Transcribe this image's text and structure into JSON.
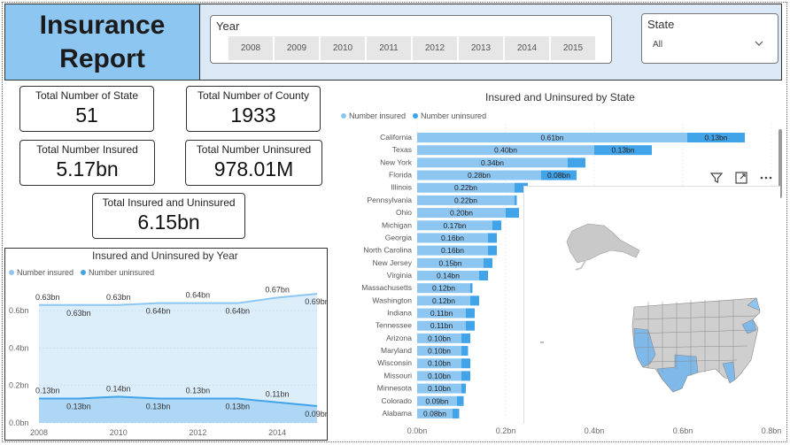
{
  "header": {
    "title": "Insurance Report",
    "year_slicer": {
      "label": "Year",
      "options": [
        "2008",
        "2009",
        "2010",
        "2011",
        "2012",
        "2013",
        "2014",
        "2015"
      ]
    },
    "state_slicer": {
      "label": "State",
      "selected": "All"
    }
  },
  "kpis": {
    "states": {
      "label": "Total Number of State",
      "value": "51"
    },
    "county": {
      "label": "Total Number of County",
      "value": "1933"
    },
    "insured": {
      "label": "Total Number Insured",
      "value": "5.17bn"
    },
    "uninsured": {
      "label": "Total Number Uninsured",
      "value": "978.01M"
    },
    "total": {
      "label": "Total Insured and Uninsured",
      "value": "6.15bn"
    }
  },
  "colors": {
    "insured": "#8ec6f2",
    "uninsured": "#41a3e8"
  },
  "year_chart": {
    "title": "Insured and Uninsured by Year",
    "legend_insured": "Number insured",
    "legend_uninsured": "Number uninsured"
  },
  "state_chart": {
    "title": "Insured and Uninsured by State",
    "legend_insured": "Number insured",
    "legend_uninsured": "Number uninsured"
  },
  "visual_icons": [
    "filter-icon",
    "focus-mode-icon",
    "more-options-icon"
  ],
  "chart_data": [
    {
      "type": "area",
      "title": "Insured and Uninsured by Year",
      "x": [
        2008,
        2009,
        2010,
        2011,
        2012,
        2013,
        2014,
        2015
      ],
      "x_ticks": [
        "2008",
        "2010",
        "2012",
        "2014"
      ],
      "y_ticks": [
        "0.0bn",
        "0.2bn",
        "0.4bn",
        "0.6bn"
      ],
      "ylim": [
        0,
        0.7
      ],
      "series": [
        {
          "name": "Number insured",
          "values": [
            0.63,
            0.63,
            0.63,
            0.64,
            0.64,
            0.64,
            0.67,
            0.69
          ],
          "labels": [
            "0.63bn",
            "0.63bn",
            "0.63bn",
            "0.64bn",
            "0.64bn",
            "0.64bn",
            "0.67bn",
            "0.69bn"
          ]
        },
        {
          "name": "Number uninsured",
          "values": [
            0.13,
            0.13,
            0.14,
            0.13,
            0.13,
            0.13,
            0.11,
            0.09
          ],
          "labels": [
            "0.13bn",
            "0.13bn",
            "0.14bn",
            "0.13bn",
            "0.13bn",
            "0.13bn",
            "0.11bn",
            "0.09bn"
          ]
        }
      ],
      "legend": "top-left"
    },
    {
      "type": "bar",
      "orientation": "horizontal",
      "stacked": true,
      "title": "Insured and Uninsured by State",
      "categories": [
        "California",
        "Texas",
        "New York",
        "Florida",
        "Illinois",
        "Pennsylvania",
        "Ohio",
        "Michigan",
        "Georgia",
        "North Carolina",
        "New Jersey",
        "Virginia",
        "Massachusetts",
        "Washington",
        "Indiana",
        "Tennessee",
        "Arizona",
        "Maryland",
        "Wisconsin",
        "Missouri",
        "Minnesota",
        "Colorado",
        "Alabama"
      ],
      "series": [
        {
          "name": "Number insured",
          "values": [
            0.61,
            0.4,
            0.34,
            0.28,
            0.22,
            0.22,
            0.2,
            0.17,
            0.16,
            0.16,
            0.15,
            0.14,
            0.12,
            0.12,
            0.11,
            0.11,
            0.1,
            0.1,
            0.1,
            0.1,
            0.1,
            0.09,
            0.08
          ],
          "labels": [
            "0.61bn",
            "0.40bn",
            "0.34bn",
            "0.28bn",
            "0.22bn",
            "0.22bn",
            "0.20bn",
            "0.17bn",
            "0.16bn",
            "0.16bn",
            "0.15bn",
            "0.14bn",
            "0.12bn",
            "0.12bn",
            "0.11bn",
            "0.11bn",
            "0.10bn",
            "0.10bn",
            "0.10bn",
            "0.10bn",
            "0.10bn",
            "0.09bn",
            "0.08bn"
          ]
        },
        {
          "name": "Number uninsured",
          "values": [
            0.13,
            0.13,
            0.04,
            0.08,
            0.03,
            0.005,
            0.03,
            0.02,
            0.02,
            0.02,
            0.02,
            0.02,
            0.005,
            0.02,
            0.02,
            0.02,
            0.02,
            0.015,
            0.02,
            0.02,
            0.01,
            0.015,
            0.015
          ],
          "labels": [
            "0.13bn",
            "0.13bn",
            "",
            "0.08bn",
            "",
            "",
            "",
            "",
            "",
            "",
            "",
            "",
            "",
            "",
            "",
            "",
            "",
            "",
            "",
            "",
            "",
            "",
            ""
          ]
        }
      ],
      "x_ticks": [
        "0.0bn",
        "0.2bn",
        "0.4bn",
        "0.6bn",
        "0.8bn"
      ],
      "xlim": [
        0,
        0.8
      ],
      "legend": "top-left"
    }
  ]
}
